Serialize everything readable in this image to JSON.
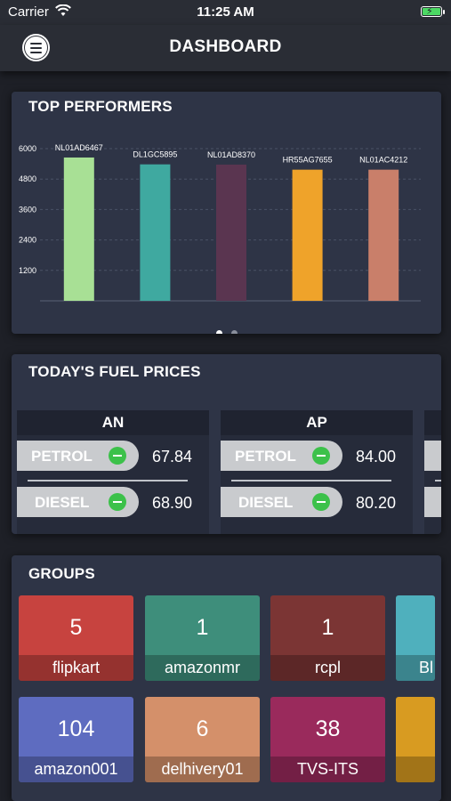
{
  "status_bar": {
    "carrier": "Carrier",
    "time": "11:25 AM"
  },
  "header": {
    "title": "DASHBOARD"
  },
  "top_performers": {
    "title": "TOP PERFORMERS",
    "pager": {
      "pages": 2,
      "active": 1
    }
  },
  "chart_data": {
    "type": "bar",
    "title": "TOP PERFORMERS",
    "categories": [
      "NL01AD6467",
      "DL1GC5895",
      "NL01AD8370",
      "HR55AG7655",
      "NL01AC4212"
    ],
    "values": [
      5650,
      5380,
      5370,
      5170,
      5170
    ],
    "ylim": [
      0,
      6000
    ],
    "yticks": [
      "1200",
      "2400",
      "3600",
      "4800",
      "6000"
    ],
    "colors": [
      "#a8e095",
      "#3fa9a0",
      "#5a3550",
      "#efa32a",
      "#c97f6a"
    ],
    "grid": true
  },
  "fuel": {
    "title": "TODAY'S FUEL PRICES",
    "states": [
      {
        "state": "AN",
        "petrol_label": "PETROL",
        "petrol_price": "67.84",
        "diesel_label": "DIESEL",
        "diesel_price": "68.90"
      },
      {
        "state": "AP",
        "petrol_label": "PETROL",
        "petrol_price": "84.00",
        "diesel_label": "DIESEL",
        "diesel_price": "80.20"
      }
    ]
  },
  "groups": {
    "title": "GROUPS",
    "tiles": [
      {
        "count": "5",
        "name": "flipkart",
        "color": "#c7433f"
      },
      {
        "count": "1",
        "name": "amazonmr",
        "color": "#3e8e7b"
      },
      {
        "count": "1",
        "name": "rcpl",
        "color": "#7b3534"
      },
      {
        "count": "",
        "name": "Bl",
        "color": "#4fb0bd"
      },
      {
        "count": "104",
        "name": "amazon001",
        "color": "#5e6cc0"
      },
      {
        "count": "6",
        "name": "delhivery01",
        "color": "#d4906a"
      },
      {
        "count": "38",
        "name": "TVS-ITS",
        "color": "#9a2a5c"
      },
      {
        "count": "",
        "name": "",
        "color": "#d89b21"
      }
    ]
  }
}
